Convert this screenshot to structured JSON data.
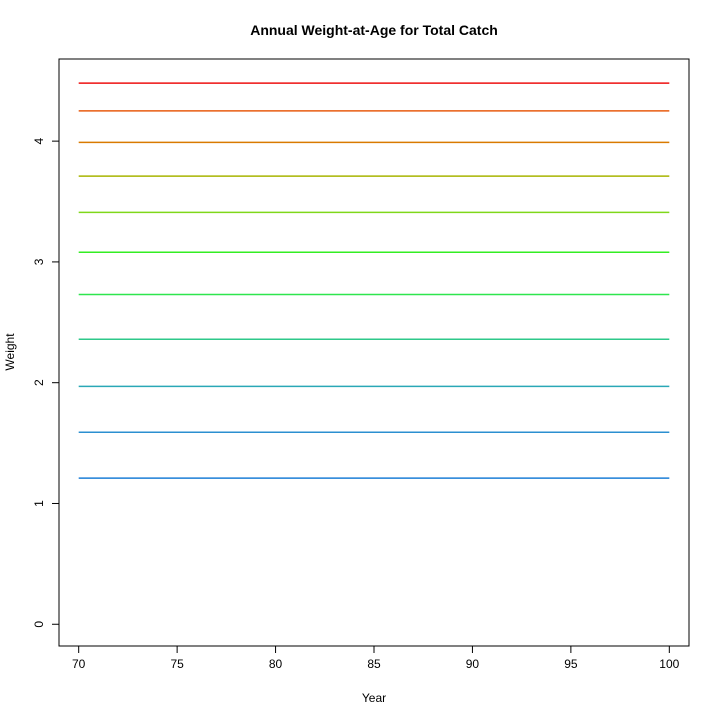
{
  "chart_data": {
    "type": "line",
    "title": "Annual Weight-at-Age for Total Catch",
    "xlabel": "Year",
    "ylabel": "Weight",
    "xlim": [
      69,
      101
    ],
    "ylim": [
      -0.18,
      4.68
    ],
    "x_ticks": [
      70,
      75,
      80,
      85,
      90,
      95,
      100
    ],
    "y_ticks": [
      0,
      1,
      2,
      3,
      4
    ],
    "grid": false,
    "legend": "none",
    "x": [
      70,
      100
    ],
    "series": [
      {
        "values": [
          1.21,
          1.21
        ],
        "color": "#1c7ed6"
      },
      {
        "values": [
          1.59,
          1.59
        ],
        "color": "#2b8fd0"
      },
      {
        "values": [
          1.97,
          1.97
        ],
        "color": "#2aa8b6"
      },
      {
        "values": [
          2.36,
          2.36
        ],
        "color": "#2ec88a"
      },
      {
        "values": [
          2.73,
          2.73
        ],
        "color": "#2ee64e"
      },
      {
        "values": [
          3.08,
          3.08
        ],
        "color": "#33ee22"
      },
      {
        "values": [
          3.41,
          3.41
        ],
        "color": "#7fd81a"
      },
      {
        "values": [
          3.71,
          3.71
        ],
        "color": "#a8b400"
      },
      {
        "values": [
          3.99,
          3.99
        ],
        "color": "#d97a00"
      },
      {
        "values": [
          4.25,
          4.25
        ],
        "color": "#e85c10"
      },
      {
        "values": [
          4.48,
          4.48
        ],
        "color": "#ee1111"
      }
    ]
  }
}
